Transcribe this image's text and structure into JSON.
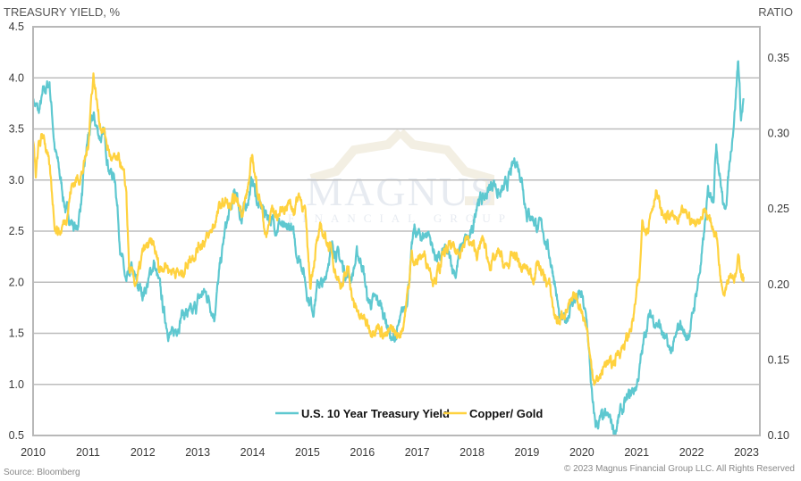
{
  "chart_data": {
    "type": "line",
    "title": "",
    "ylabel_left": "TREASURY YIELD, %",
    "ylabel_right": "RATIO",
    "xlabel": "",
    "x_ticks": [
      "2010",
      "2011",
      "2012",
      "2013",
      "2014",
      "2015",
      "2016",
      "2017",
      "2018",
      "2019",
      "2020",
      "2021",
      "2022",
      "2023"
    ],
    "xlim": [
      2010,
      2023.25
    ],
    "y_left_ticks": [
      "4.5",
      "4.0",
      "3.5",
      "3.0",
      "2.5",
      "2.0",
      "1.5",
      "1.0",
      "0.5"
    ],
    "ylim_left": [
      0.5,
      4.5
    ],
    "y_right_ticks": [
      "0.35",
      "0.30",
      "0.25",
      "0.20",
      "0.15",
      "0.10"
    ],
    "ylim_right": [
      0.1,
      0.365
    ],
    "grid": true,
    "legend_position": "bottom-center",
    "series": [
      {
        "name": "U.S. 10 Year Treasury Yield",
        "axis": "left",
        "color": "#5ec8d0",
        "points": [
          [
            2010.0,
            3.8
          ],
          [
            2010.1,
            3.65
          ],
          [
            2010.2,
            3.85
          ],
          [
            2010.3,
            3.95
          ],
          [
            2010.4,
            3.3
          ],
          [
            2010.5,
            3.0
          ],
          [
            2010.6,
            2.7
          ],
          [
            2010.7,
            2.6
          ],
          [
            2010.8,
            2.5
          ],
          [
            2010.9,
            2.9
          ],
          [
            2011.0,
            3.4
          ],
          [
            2011.1,
            3.6
          ],
          [
            2011.2,
            3.45
          ],
          [
            2011.3,
            3.4
          ],
          [
            2011.4,
            3.1
          ],
          [
            2011.5,
            3.0
          ],
          [
            2011.6,
            2.3
          ],
          [
            2011.7,
            1.95
          ],
          [
            2011.8,
            2.1
          ],
          [
            2011.9,
            1.95
          ],
          [
            2012.0,
            1.9
          ],
          [
            2012.1,
            2.0
          ],
          [
            2012.2,
            2.2
          ],
          [
            2012.3,
            1.95
          ],
          [
            2012.4,
            1.65
          ],
          [
            2012.5,
            1.5
          ],
          [
            2012.55,
            1.45
          ],
          [
            2012.7,
            1.7
          ],
          [
            2012.8,
            1.7
          ],
          [
            2012.9,
            1.65
          ],
          [
            2013.0,
            1.8
          ],
          [
            2013.1,
            1.9
          ],
          [
            2013.2,
            1.85
          ],
          [
            2013.3,
            1.7
          ],
          [
            2013.4,
            2.1
          ],
          [
            2013.5,
            2.5
          ],
          [
            2013.6,
            2.7
          ],
          [
            2013.7,
            2.9
          ],
          [
            2013.8,
            2.6
          ],
          [
            2013.9,
            2.8
          ],
          [
            2014.0,
            3.0
          ],
          [
            2014.1,
            2.75
          ],
          [
            2014.2,
            2.7
          ],
          [
            2014.3,
            2.65
          ],
          [
            2014.4,
            2.55
          ],
          [
            2014.5,
            2.6
          ],
          [
            2014.6,
            2.45
          ],
          [
            2014.7,
            2.55
          ],
          [
            2014.8,
            2.3
          ],
          [
            2014.9,
            2.2
          ],
          [
            2015.0,
            1.9
          ],
          [
            2015.1,
            1.75
          ],
          [
            2015.2,
            2.0
          ],
          [
            2015.3,
            1.95
          ],
          [
            2015.4,
            2.3
          ],
          [
            2015.5,
            2.35
          ],
          [
            2015.6,
            2.2
          ],
          [
            2015.7,
            2.1
          ],
          [
            2015.8,
            2.05
          ],
          [
            2015.9,
            2.25
          ],
          [
            2016.0,
            2.2
          ],
          [
            2016.1,
            1.8
          ],
          [
            2016.2,
            1.8
          ],
          [
            2016.3,
            1.8
          ],
          [
            2016.4,
            1.7
          ],
          [
            2016.5,
            1.5
          ],
          [
            2016.55,
            1.4
          ],
          [
            2016.7,
            1.6
          ],
          [
            2016.8,
            1.8
          ],
          [
            2016.9,
            2.3
          ],
          [
            2016.95,
            2.5
          ],
          [
            2017.0,
            2.45
          ],
          [
            2017.1,
            2.45
          ],
          [
            2017.2,
            2.5
          ],
          [
            2017.3,
            2.3
          ],
          [
            2017.4,
            2.2
          ],
          [
            2017.5,
            2.3
          ],
          [
            2017.6,
            2.2
          ],
          [
            2017.7,
            2.1
          ],
          [
            2017.8,
            2.35
          ],
          [
            2017.9,
            2.4
          ],
          [
            2018.0,
            2.45
          ],
          [
            2018.1,
            2.85
          ],
          [
            2018.2,
            2.8
          ],
          [
            2018.3,
            2.9
          ],
          [
            2018.4,
            3.0
          ],
          [
            2018.5,
            2.85
          ],
          [
            2018.6,
            2.9
          ],
          [
            2018.7,
            3.05
          ],
          [
            2018.8,
            3.2
          ],
          [
            2018.9,
            3.05
          ],
          [
            2019.0,
            2.7
          ],
          [
            2019.1,
            2.65
          ],
          [
            2019.2,
            2.55
          ],
          [
            2019.3,
            2.5
          ],
          [
            2019.4,
            2.3
          ],
          [
            2019.5,
            2.05
          ],
          [
            2019.6,
            1.6
          ],
          [
            2019.7,
            1.6
          ],
          [
            2019.8,
            1.8
          ],
          [
            2019.9,
            1.85
          ],
          [
            2020.0,
            1.85
          ],
          [
            2020.1,
            1.55
          ],
          [
            2020.2,
            0.75
          ],
          [
            2020.25,
            0.6
          ],
          [
            2020.35,
            0.65
          ],
          [
            2020.5,
            0.65
          ],
          [
            2020.6,
            0.55
          ],
          [
            2020.7,
            0.7
          ],
          [
            2020.8,
            0.8
          ],
          [
            2020.9,
            0.9
          ],
          [
            2021.0,
            1.0
          ],
          [
            2021.1,
            1.3
          ],
          [
            2021.2,
            1.65
          ],
          [
            2021.3,
            1.65
          ],
          [
            2021.4,
            1.6
          ],
          [
            2021.5,
            1.45
          ],
          [
            2021.6,
            1.3
          ],
          [
            2021.7,
            1.4
          ],
          [
            2021.8,
            1.6
          ],
          [
            2021.9,
            1.45
          ],
          [
            2022.0,
            1.6
          ],
          [
            2022.1,
            1.95
          ],
          [
            2022.2,
            2.3
          ],
          [
            2022.3,
            2.85
          ],
          [
            2022.4,
            2.9
          ],
          [
            2022.45,
            3.4
          ],
          [
            2022.55,
            2.9
          ],
          [
            2022.6,
            2.65
          ],
          [
            2022.7,
            3.2
          ],
          [
            2022.8,
            3.8
          ],
          [
            2022.85,
            4.2
          ],
          [
            2022.9,
            3.6
          ],
          [
            2022.95,
            3.8
          ]
        ]
      },
      {
        "name": "Copper/ Gold",
        "axis": "right",
        "color": "#ffd23f",
        "points": [
          [
            2010.0,
            0.295
          ],
          [
            2010.05,
            0.27
          ],
          [
            2010.1,
            0.29
          ],
          [
            2010.2,
            0.3
          ],
          [
            2010.3,
            0.275
          ],
          [
            2010.4,
            0.24
          ],
          [
            2010.5,
            0.235
          ],
          [
            2010.6,
            0.245
          ],
          [
            2010.7,
            0.265
          ],
          [
            2010.8,
            0.27
          ],
          [
            2010.9,
            0.275
          ],
          [
            2011.0,
            0.29
          ],
          [
            2011.05,
            0.32
          ],
          [
            2011.1,
            0.34
          ],
          [
            2011.2,
            0.31
          ],
          [
            2011.3,
            0.3
          ],
          [
            2011.4,
            0.285
          ],
          [
            2011.5,
            0.28
          ],
          [
            2011.6,
            0.28
          ],
          [
            2011.7,
            0.26
          ],
          [
            2011.75,
            0.21
          ],
          [
            2011.85,
            0.2
          ],
          [
            2011.95,
            0.21
          ],
          [
            2012.0,
            0.22
          ],
          [
            2012.1,
            0.225
          ],
          [
            2012.2,
            0.225
          ],
          [
            2012.3,
            0.21
          ],
          [
            2012.4,
            0.215
          ],
          [
            2012.5,
            0.21
          ],
          [
            2012.6,
            0.21
          ],
          [
            2012.7,
            0.205
          ],
          [
            2012.8,
            0.215
          ],
          [
            2012.9,
            0.22
          ],
          [
            2013.0,
            0.225
          ],
          [
            2013.1,
            0.23
          ],
          [
            2013.2,
            0.23
          ],
          [
            2013.3,
            0.24
          ],
          [
            2013.4,
            0.25
          ],
          [
            2013.5,
            0.255
          ],
          [
            2013.6,
            0.25
          ],
          [
            2013.7,
            0.255
          ],
          [
            2013.8,
            0.25
          ],
          [
            2013.9,
            0.26
          ],
          [
            2014.0,
            0.285
          ],
          [
            2014.05,
            0.27
          ],
          [
            2014.15,
            0.255
          ],
          [
            2014.25,
            0.23
          ],
          [
            2014.35,
            0.25
          ],
          [
            2014.45,
            0.245
          ],
          [
            2014.55,
            0.25
          ],
          [
            2014.65,
            0.255
          ],
          [
            2014.75,
            0.25
          ],
          [
            2014.85,
            0.26
          ],
          [
            2014.95,
            0.25
          ],
          [
            2015.0,
            0.225
          ],
          [
            2015.05,
            0.2
          ],
          [
            2015.15,
            0.225
          ],
          [
            2015.25,
            0.235
          ],
          [
            2015.35,
            0.23
          ],
          [
            2015.45,
            0.22
          ],
          [
            2015.55,
            0.205
          ],
          [
            2015.65,
            0.2
          ],
          [
            2015.75,
            0.21
          ],
          [
            2015.85,
            0.185
          ],
          [
            2015.95,
            0.18
          ],
          [
            2016.05,
            0.175
          ],
          [
            2016.15,
            0.17
          ],
          [
            2016.25,
            0.175
          ],
          [
            2016.35,
            0.17
          ],
          [
            2016.45,
            0.165
          ],
          [
            2016.55,
            0.17
          ],
          [
            2016.65,
            0.165
          ],
          [
            2016.75,
            0.175
          ],
          [
            2016.85,
            0.2
          ],
          [
            2016.9,
            0.22
          ],
          [
            2017.0,
            0.215
          ],
          [
            2017.1,
            0.22
          ],
          [
            2017.2,
            0.215
          ],
          [
            2017.3,
            0.205
          ],
          [
            2017.4,
            0.21
          ],
          [
            2017.5,
            0.22
          ],
          [
            2017.6,
            0.225
          ],
          [
            2017.7,
            0.22
          ],
          [
            2017.8,
            0.225
          ],
          [
            2017.9,
            0.23
          ],
          [
            2018.0,
            0.225
          ],
          [
            2018.1,
            0.22
          ],
          [
            2018.2,
            0.23
          ],
          [
            2018.3,
            0.215
          ],
          [
            2018.4,
            0.215
          ],
          [
            2018.5,
            0.22
          ],
          [
            2018.6,
            0.21
          ],
          [
            2018.7,
            0.215
          ],
          [
            2018.8,
            0.22
          ],
          [
            2018.9,
            0.21
          ],
          [
            2019.0,
            0.21
          ],
          [
            2019.1,
            0.205
          ],
          [
            2019.2,
            0.215
          ],
          [
            2019.3,
            0.205
          ],
          [
            2019.4,
            0.2
          ],
          [
            2019.5,
            0.18
          ],
          [
            2019.6,
            0.175
          ],
          [
            2019.7,
            0.185
          ],
          [
            2019.8,
            0.185
          ],
          [
            2019.9,
            0.19
          ],
          [
            2020.0,
            0.185
          ],
          [
            2020.1,
            0.17
          ],
          [
            2020.15,
            0.15
          ],
          [
            2020.25,
            0.135
          ],
          [
            2020.35,
            0.14
          ],
          [
            2020.45,
            0.15
          ],
          [
            2020.55,
            0.145
          ],
          [
            2020.65,
            0.155
          ],
          [
            2020.75,
            0.16
          ],
          [
            2020.85,
            0.165
          ],
          [
            2020.95,
            0.18
          ],
          [
            2021.0,
            0.195
          ],
          [
            2021.05,
            0.2
          ],
          [
            2021.1,
            0.24
          ],
          [
            2021.2,
            0.24
          ],
          [
            2021.3,
            0.255
          ],
          [
            2021.35,
            0.265
          ],
          [
            2021.45,
            0.245
          ],
          [
            2021.55,
            0.245
          ],
          [
            2021.65,
            0.245
          ],
          [
            2021.75,
            0.24
          ],
          [
            2021.85,
            0.245
          ],
          [
            2021.95,
            0.245
          ],
          [
            2022.05,
            0.24
          ],
          [
            2022.15,
            0.245
          ],
          [
            2022.25,
            0.25
          ],
          [
            2022.35,
            0.24
          ],
          [
            2022.45,
            0.235
          ],
          [
            2022.5,
            0.215
          ],
          [
            2022.55,
            0.2
          ],
          [
            2022.6,
            0.2
          ],
          [
            2022.7,
            0.21
          ],
          [
            2022.8,
            0.205
          ],
          [
            2022.85,
            0.215
          ],
          [
            2022.95,
            0.205
          ]
        ]
      }
    ]
  },
  "watermark": {
    "name": "MAGNUS",
    "sub": "FINANCIAL GROUP"
  },
  "footer": {
    "source": "Source: Bloomberg",
    "copyright": "© 2023 Magnus Financial Group LLC. All Rights Reserved"
  }
}
